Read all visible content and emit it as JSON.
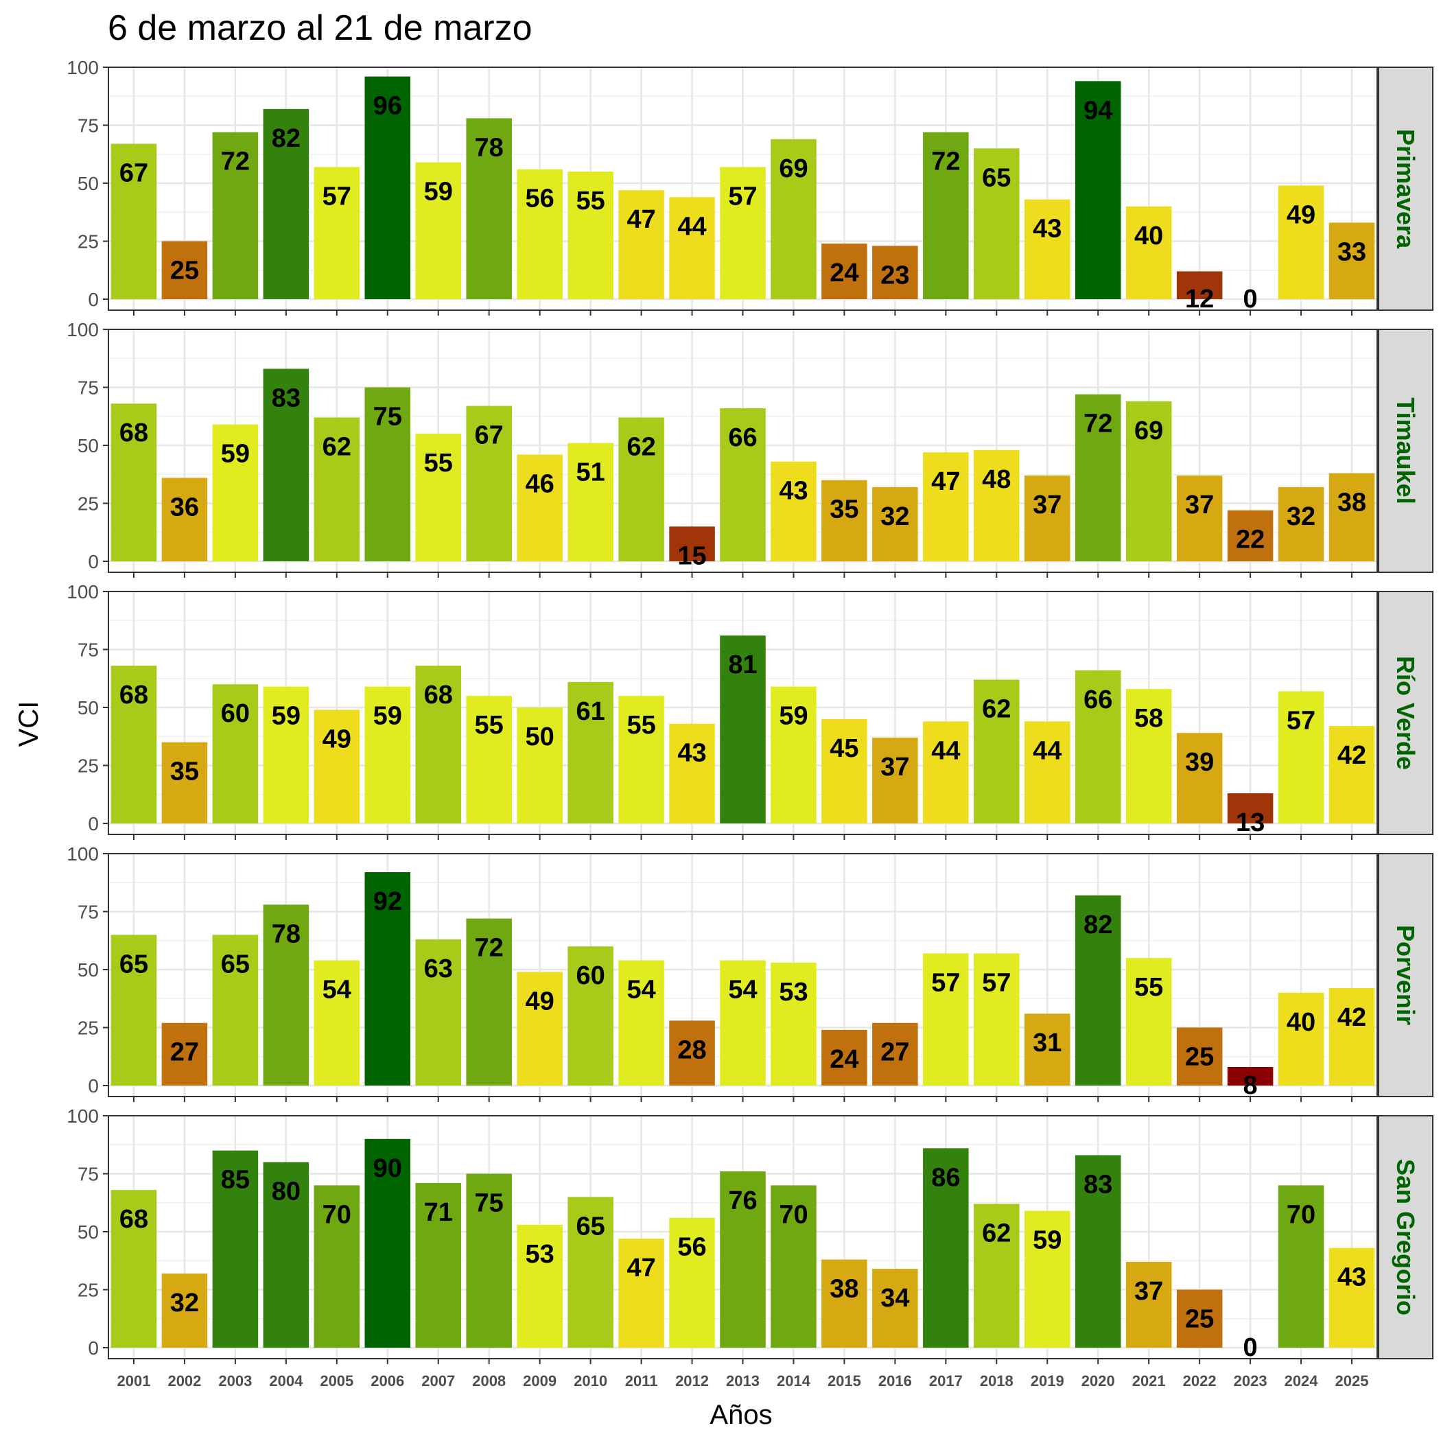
{
  "chart_data": {
    "type": "bar",
    "title": "6 de marzo al 21 de marzo",
    "xlabel": "Años",
    "ylabel": "VCI",
    "ylim": [
      0,
      100
    ],
    "yticks": [
      "0",
      "25",
      "50",
      "75",
      "100"
    ],
    "grid": true,
    "facet_label_color": "#006400",
    "categories": [
      "2001",
      "2002",
      "2003",
      "2004",
      "2005",
      "2006",
      "2007",
      "2008",
      "2009",
      "2010",
      "2011",
      "2012",
      "2013",
      "2014",
      "2015",
      "2016",
      "2017",
      "2018",
      "2019",
      "2020",
      "2021",
      "2022",
      "2023",
      "2024",
      "2025"
    ],
    "color_scale": [
      {
        "min": 0,
        "color": "#8b0000"
      },
      {
        "min": 10,
        "color": "#a0350a"
      },
      {
        "min": 20,
        "color": "#c0700c"
      },
      {
        "min": 30,
        "color": "#d6a811"
      },
      {
        "min": 40,
        "color": "#eedd1d"
      },
      {
        "min": 50,
        "color": "#e0ec1f"
      },
      {
        "min": 60,
        "color": "#a8cb1a"
      },
      {
        "min": 70,
        "color": "#6fa811"
      },
      {
        "min": 80,
        "color": "#33820d"
      },
      {
        "min": 90,
        "color": "#006400"
      }
    ],
    "panels": [
      {
        "name": "Primavera",
        "values": [
          67,
          25,
          72,
          82,
          57,
          96,
          59,
          78,
          56,
          55,
          47,
          44,
          57,
          69,
          24,
          23,
          72,
          65,
          43,
          94,
          40,
          12,
          0,
          49,
          33
        ]
      },
      {
        "name": "Timaukel",
        "values": [
          68,
          36,
          59,
          83,
          62,
          75,
          55,
          67,
          46,
          51,
          62,
          15,
          66,
          43,
          35,
          32,
          47,
          48,
          37,
          72,
          69,
          37,
          22,
          32,
          38
        ]
      },
      {
        "name": "Río Verde",
        "values": [
          68,
          35,
          60,
          59,
          49,
          59,
          68,
          55,
          50,
          61,
          55,
          43,
          81,
          59,
          45,
          37,
          44,
          62,
          44,
          66,
          58,
          39,
          13,
          57,
          42
        ]
      },
      {
        "name": "Porvenir",
        "values": [
          65,
          27,
          65,
          78,
          54,
          92,
          63,
          72,
          49,
          60,
          54,
          28,
          54,
          53,
          24,
          27,
          57,
          57,
          31,
          82,
          55,
          25,
          8,
          40,
          42
        ]
      },
      {
        "name": "San Gregorio",
        "values": [
          68,
          32,
          85,
          80,
          70,
          90,
          71,
          75,
          53,
          65,
          47,
          56,
          76,
          70,
          38,
          34,
          86,
          62,
          59,
          83,
          37,
          25,
          0,
          70,
          43
        ]
      }
    ]
  }
}
